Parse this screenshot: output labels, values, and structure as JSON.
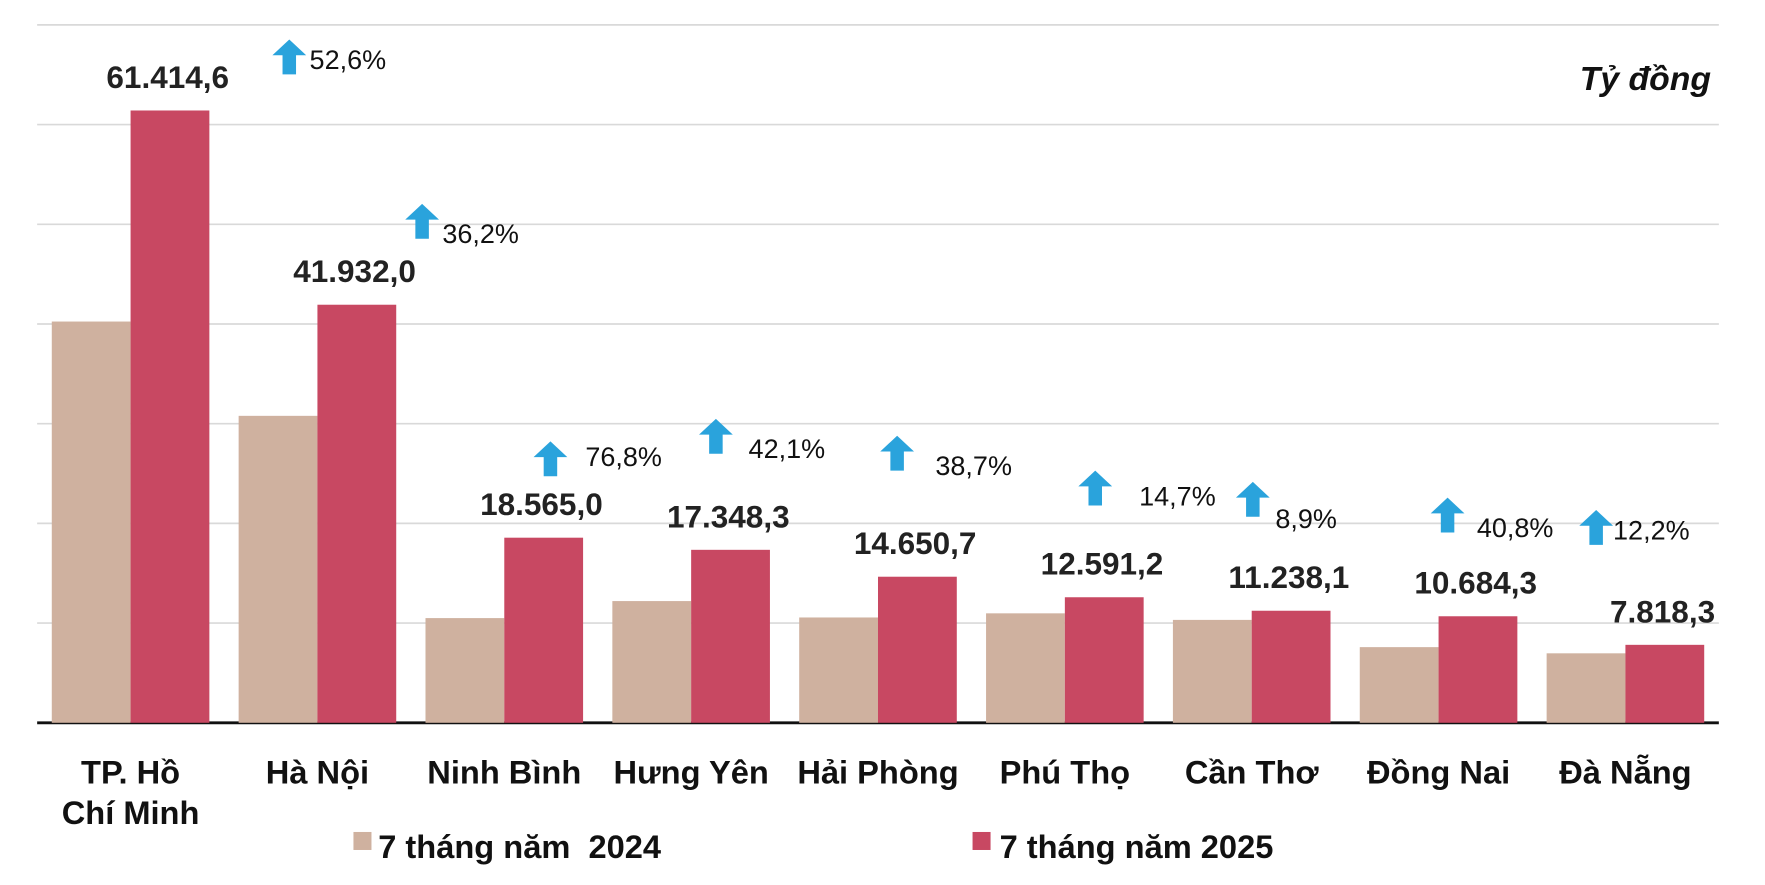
{
  "chart_data": {
    "type": "bar",
    "title": "",
    "unit_label": "Tỷ đồng",
    "xlabel": "",
    "ylabel": "",
    "ylim": [
      0,
      70000
    ],
    "grid": true,
    "legend_placement": "bottom",
    "categories": [
      [
        "TP. Hồ",
        "Chí Minh"
      ],
      [
        "Hà Nội"
      ],
      [
        "Ninh Bình"
      ],
      [
        "Hưng Yên"
      ],
      [
        "Hải Phòng"
      ],
      [
        "Phú Thọ"
      ],
      [
        "Cần Thơ"
      ],
      [
        "Đồng Nai"
      ],
      [
        "Đà Nẵng"
      ]
    ],
    "series": [
      {
        "name": "7 tháng năm  2024",
        "color": "#cfb19f",
        "values": [
          40245,
          30787,
          10501,
          12208,
          10563,
          10978,
          10320,
          7588,
          6968
        ]
      },
      {
        "name": "7 tháng năm 2025",
        "color": "#c84862",
        "values": [
          61414.6,
          41932.0,
          18565.0,
          17348.3,
          14650.7,
          12591.2,
          11238.1,
          10684.3,
          7818.3
        ],
        "labels": [
          "61.414,6",
          "41.932,0",
          "18.565,0",
          "17.348,3",
          "14.650,7",
          "12.591,2",
          "11.238,1",
          "10.684,3",
          "7.818,3"
        ]
      }
    ],
    "growth": {
      "icon": "arrow-up-icon",
      "color": "#2aa3dc",
      "labels": [
        "52,6%",
        "36,2%",
        "76,8%",
        "42,1%",
        "38,7%",
        "14,7%",
        "8,9%",
        "40,8%",
        "12,2%"
      ]
    }
  }
}
